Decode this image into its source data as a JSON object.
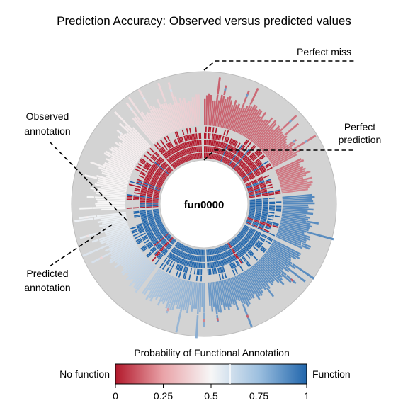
{
  "chart_data": {
    "type": "sunburst",
    "title": "Prediction Accuracy: Observed versus predicted values",
    "center_label": "fun0000",
    "annotations": {
      "perfect_miss": "Perfect miss",
      "perfect_prediction": [
        "Perfect",
        "prediction"
      ],
      "observed_annotation": [
        "Observed",
        "annotation"
      ],
      "predicted_annotation": [
        "Predicted",
        "annotation"
      ]
    },
    "legend": {
      "title": "Probability of Functional Annotation",
      "low_label": "No function",
      "high_label": "Function",
      "ticks": [
        "0",
        "0.25",
        "0.5",
        "0.75",
        "1"
      ],
      "tick_values": [
        0,
        0.25,
        0.5,
        0.75,
        1
      ],
      "marker_value": 0.6,
      "placement": "bottom"
    },
    "color_scale": {
      "low": "#B2182B",
      "mid": "#F7F7F7",
      "high": "#2166AC"
    },
    "background_colors": {
      "disk": "#D3D3D3"
    },
    "groups": [
      {
        "span": 56,
        "observed": [
          0,
          0,
          0,
          0,
          0,
          0,
          0,
          0,
          0,
          0,
          0,
          0,
          0,
          0,
          0,
          0,
          0,
          0,
          0,
          1,
          0,
          0,
          0,
          0,
          0,
          0,
          0,
          0,
          0,
          1,
          0,
          0,
          0,
          0,
          0,
          1,
          0,
          0,
          0,
          0,
          0,
          0,
          0,
          0,
          0,
          0,
          0,
          0,
          0,
          0,
          1,
          0,
          0,
          0,
          0,
          0
        ],
        "predicted_start": 0.16,
        "predicted_end": 0.22
      },
      {
        "span": 16,
        "observed": [
          0,
          0,
          0,
          1,
          1,
          0,
          0,
          0,
          0,
          1,
          0,
          0,
          0,
          1,
          0,
          0
        ],
        "predicted_start": 0.2,
        "predicted_end": 0.24
      },
      {
        "span": 27,
        "observed": [
          1,
          1,
          1,
          1,
          1,
          1,
          1,
          1,
          1,
          1,
          1,
          1,
          1,
          1,
          1,
          1,
          1,
          1,
          1,
          1,
          0,
          0,
          1,
          1,
          1,
          0,
          1
        ],
        "predicted_start": 0.88,
        "predicted_end": 0.86
      },
      {
        "span": 54,
        "observed": [
          1,
          1,
          1,
          1,
          1,
          1,
          1,
          1,
          1,
          1,
          1,
          1,
          1,
          1,
          1,
          1,
          1,
          1,
          1,
          1,
          1,
          1,
          1,
          1,
          1,
          1,
          1,
          0,
          0,
          1,
          1,
          1,
          1,
          1,
          1,
          1,
          1,
          1,
          1,
          1,
          1,
          1,
          1,
          1,
          1,
          1,
          1,
          1,
          1,
          1,
          1,
          1,
          1,
          1
        ],
        "predicted_start": 0.87,
        "predicted_end": 0.82
      },
      {
        "span": 32,
        "observed": [
          1,
          1,
          1,
          1,
          1,
          1,
          1,
          1,
          1,
          1,
          1,
          1,
          1,
          1,
          1,
          1,
          1,
          1,
          1,
          1,
          1,
          1,
          1,
          1,
          1,
          1,
          1,
          1,
          1,
          1,
          1,
          1
        ],
        "predicted_start": 0.76,
        "predicted_end": 0.66
      },
      {
        "span": 42,
        "observed": [
          1,
          1,
          1,
          1,
          0,
          0,
          1,
          1,
          1,
          1,
          1,
          0,
          1,
          1,
          1,
          1,
          1,
          1,
          1,
          1,
          1,
          1,
          1,
          1,
          1,
          1,
          1,
          1,
          1,
          1,
          1,
          1,
          1,
          1,
          1,
          1,
          1,
          1,
          1,
          1,
          1,
          1
        ],
        "predicted_start": 0.64,
        "predicted_end": 0.52
      },
      {
        "span": 46,
        "observed": [
          0,
          1,
          0,
          1,
          0,
          0,
          0,
          0,
          0,
          1,
          0,
          0,
          0,
          0,
          0,
          0,
          0,
          0,
          1,
          0,
          1,
          0,
          0,
          0,
          0,
          0,
          0,
          0,
          0,
          0,
          0,
          0,
          0,
          0,
          0,
          0,
          0,
          0,
          0,
          1,
          0,
          0,
          0,
          0,
          0,
          0
        ],
        "predicted_start": 0.5,
        "predicted_end": 0.47
      },
      {
        "span": 34,
        "observed": [
          0,
          0,
          0,
          0,
          0,
          0,
          0,
          0,
          0,
          0,
          0,
          0,
          0,
          0,
          0,
          0,
          0,
          0,
          0,
          0,
          0,
          0,
          0,
          0,
          0,
          0,
          0,
          0,
          0,
          0,
          0,
          0,
          0,
          0
        ],
        "predicted_start": 0.45,
        "predicted_end": 0.4
      }
    ]
  }
}
